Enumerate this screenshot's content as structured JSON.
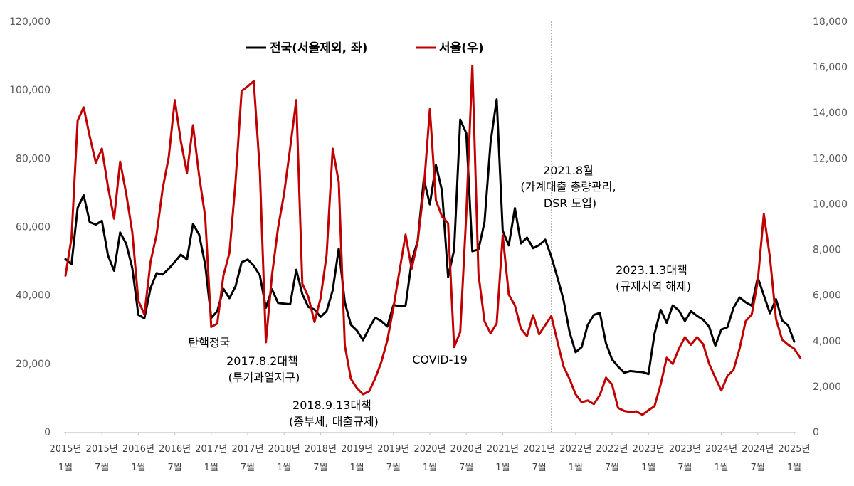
{
  "chart_data": {
    "type": "line",
    "y_left": {
      "ticks": [
        "0",
        "20,000",
        "40,000",
        "60,000",
        "80,000",
        "100,000",
        "120,000"
      ],
      "ylim": [
        0,
        120000
      ]
    },
    "y_right": {
      "ticks": [
        "0",
        "2,000",
        "4,000",
        "6,000",
        "8,000",
        "10,000",
        "12,000",
        "14,000",
        "16,000",
        "18,000"
      ],
      "ylim": [
        0,
        18000
      ]
    },
    "x_ticks": [
      [
        "2015년",
        "1월"
      ],
      [
        "2015년",
        "7월"
      ],
      [
        "2016년",
        "1월"
      ],
      [
        "2016년",
        "7월"
      ],
      [
        "2017년",
        "1월"
      ],
      [
        "2017년",
        "7월"
      ],
      [
        "2018년",
        "1월"
      ],
      [
        "2018년",
        "7월"
      ],
      [
        "2019년",
        "1월"
      ],
      [
        "2019년",
        "7월"
      ],
      [
        "2020년",
        "1월"
      ],
      [
        "2020년",
        "7월"
      ],
      [
        "2021년",
        "1월"
      ],
      [
        "2021년",
        "7월"
      ],
      [
        "2022년",
        "1월"
      ],
      [
        "2022년",
        "7월"
      ],
      [
        "2023년",
        "1월"
      ],
      [
        "2023년",
        "7월"
      ],
      [
        "2024년",
        "1월"
      ],
      [
        "2024년",
        "7월"
      ],
      [
        "2025년",
        "1월"
      ]
    ],
    "series": [
      {
        "name": "전국(서울제외, 좌)",
        "color": "#000000",
        "axis": "left",
        "values": [
          50500,
          49000,
          65500,
          69200,
          61300,
          60600,
          61700,
          51600,
          47100,
          58300,
          55000,
          47900,
          34200,
          33200,
          42000,
          46400,
          46000,
          47700,
          49700,
          51800,
          50400,
          60800,
          57700,
          48900,
          33300,
          35300,
          41800,
          39100,
          42500,
          49600,
          50400,
          48600,
          45800,
          36300,
          41700,
          37700,
          37500,
          37300,
          47400,
          40300,
          36500,
          35800,
          33600,
          35300,
          41400,
          53600,
          37900,
          31300,
          29600,
          26800,
          30300,
          33400,
          32400,
          30800,
          37100,
          36800,
          36900,
          49800,
          55800,
          73900,
          66500,
          78000,
          70500,
          45300,
          53200,
          91300,
          87300,
          52800,
          53300,
          61300,
          84600,
          97200,
          58800,
          54500,
          65400,
          55100,
          56800,
          53700,
          54600,
          56200,
          51200,
          45200,
          38700,
          29200,
          23300,
          24800,
          31300,
          34200,
          34800,
          25900,
          21200,
          19100,
          17300,
          17800,
          17600,
          17500,
          16900,
          28700,
          35700,
          31900,
          37000,
          35500,
          32400,
          35300,
          33900,
          32800,
          30700,
          25200,
          29900,
          30600,
          36300,
          39300,
          37900,
          36900,
          45100,
          39900,
          34700,
          38800,
          32600,
          31100,
          26400
        ]
      },
      {
        "name": "서울(우)",
        "color": "#C00000",
        "axis": "right",
        "values": [
          6850,
          8500,
          13650,
          14230,
          12950,
          11800,
          12420,
          10750,
          9350,
          11850,
          10450,
          8750,
          5750,
          5150,
          7450,
          8650,
          10650,
          12050,
          14550,
          12750,
          11350,
          13450,
          11250,
          9450,
          4600,
          4750,
          6850,
          7850,
          10950,
          14950,
          15150,
          15380,
          11450,
          3930,
          6850,
          8950,
          10450,
          12450,
          14550,
          6500,
          5920,
          4820,
          5850,
          7750,
          12420,
          10950,
          3800,
          2320,
          1920,
          1650,
          1780,
          2350,
          3050,
          4020,
          5450,
          7050,
          8650,
          7150,
          8350,
          10650,
          14150,
          10150,
          9450,
          9150,
          3720,
          4380,
          9550,
          16050,
          6920,
          4850,
          4320,
          4750,
          8620,
          6020,
          5550,
          4520,
          4200,
          5120,
          4280,
          4680,
          5080,
          3970,
          2880,
          2320,
          1650,
          1300,
          1380,
          1220,
          1620,
          2380,
          2080,
          1050,
          920,
          870,
          900,
          750,
          950,
          1130,
          2080,
          3250,
          2980,
          3650,
          4150,
          3820,
          4150,
          3850,
          2980,
          2380,
          1820,
          2450,
          2720,
          3650,
          4850,
          5150,
          6620,
          9550,
          7650,
          4950,
          4050,
          3820,
          3650,
          3250
        ]
      }
    ],
    "vline_at_index": 80,
    "annotations": [
      {
        "lines": [
          "탄핵정국"
        ]
      },
      {
        "lines": [
          "2017.8.2대책",
          "(투기과열지구)"
        ]
      },
      {
        "lines": [
          "2018.9.13대책",
          "(종부세, 대출규제)"
        ]
      },
      {
        "lines": [
          "COVID-19"
        ]
      },
      {
        "lines": [
          "2021.8월",
          "(가계대출 총량관리,",
          "DSR 도입)"
        ]
      },
      {
        "lines": [
          "2023.1.3대책",
          "(규제지역 해제)"
        ]
      }
    ],
    "legend_placement": "top-center",
    "grid": false
  }
}
